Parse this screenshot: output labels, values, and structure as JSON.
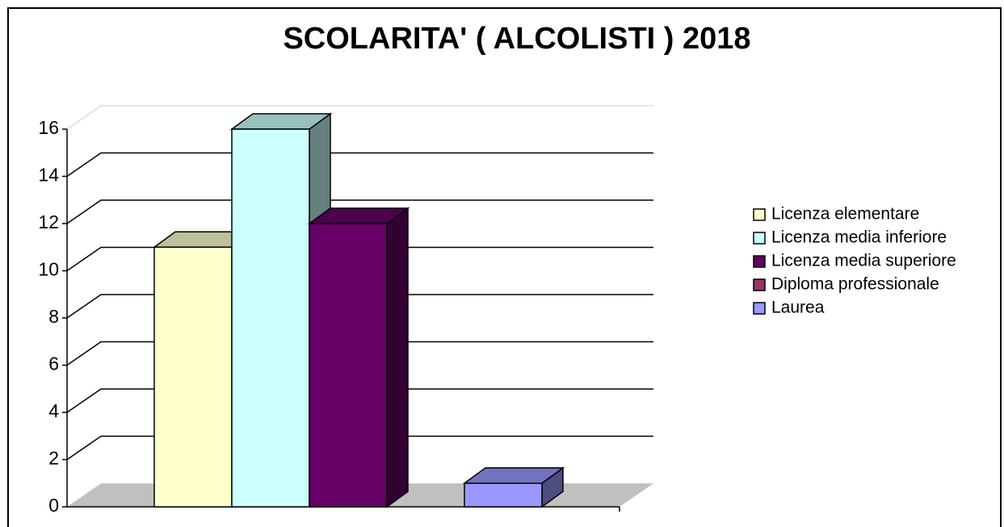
{
  "chart_data": {
    "type": "bar3d",
    "title": "SCOLARITA' ( ALCOLISTI ) 2018",
    "categories": [
      null
    ],
    "series": [
      {
        "name": "Licenza elementare",
        "color": "#FFFFCC",
        "values": [
          11
        ]
      },
      {
        "name": "Licenza media inferiore",
        "color": "#CCFFFF",
        "values": [
          16
        ]
      },
      {
        "name": "Licenza media superiore",
        "color": "#660066",
        "values": [
          12
        ]
      },
      {
        "name": "Diploma professionale",
        "color": "#993366",
        "values": [
          0
        ]
      },
      {
        "name": "Laurea",
        "color": "#9999FF",
        "values": [
          1
        ]
      }
    ],
    "ylim": [
      0,
      16
    ],
    "yticks": [
      0,
      2,
      4,
      6,
      8,
      10,
      12,
      14,
      16
    ],
    "grid": true,
    "legend": "right"
  }
}
